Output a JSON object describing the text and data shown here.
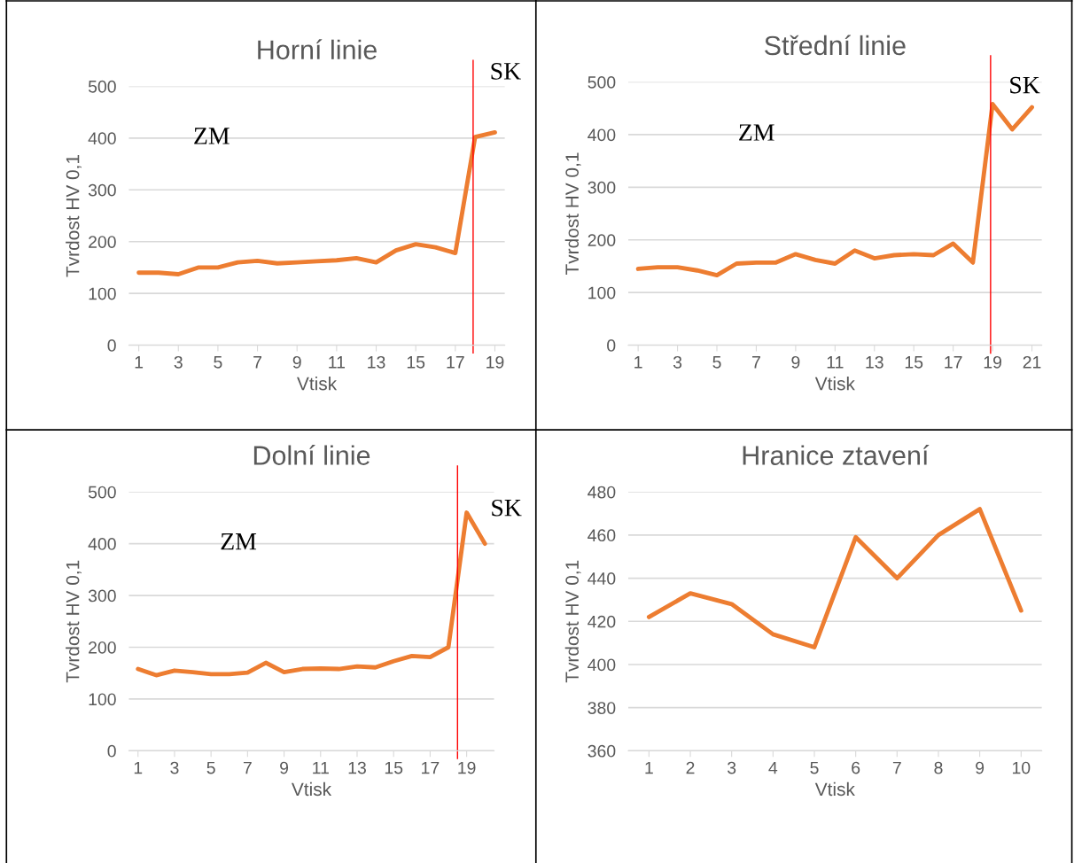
{
  "chart_data": [
    {
      "type": "line",
      "title": "Horní linie",
      "xlabel": "Vtisk",
      "ylabel": "Tvrdost HV 0,1",
      "x": [
        1,
        2,
        3,
        4,
        5,
        6,
        7,
        8,
        9,
        10,
        11,
        12,
        13,
        14,
        15,
        16,
        17,
        18,
        19
      ],
      "series": [
        {
          "color": "#ed7d31",
          "values": [
            140,
            140,
            137,
            150,
            150,
            160,
            163,
            158,
            160,
            162,
            164,
            168,
            160,
            183,
            195,
            189,
            178,
            402,
            411
          ]
        }
      ],
      "xlim": [
        0.5,
        19.5
      ],
      "xticks": [
        1,
        3,
        5,
        7,
        9,
        11,
        13,
        15,
        17,
        19
      ],
      "ylim": [
        0,
        500
      ],
      "yticks": [
        0,
        100,
        200,
        300,
        400,
        500
      ],
      "grid": "y",
      "ref_lines": [
        {
          "axis": "x",
          "value": 17.9,
          "color": "#ff0000"
        }
      ],
      "annotations": [
        "ZM",
        "SK"
      ]
    },
    {
      "type": "line",
      "title": "Střední linie",
      "xlabel": "Vtisk",
      "ylabel": "Tvrdost HV 0,1",
      "x": [
        1,
        2,
        3,
        4,
        5,
        6,
        7,
        8,
        9,
        10,
        11,
        12,
        13,
        14,
        15,
        16,
        17,
        18,
        19,
        20,
        21
      ],
      "series": [
        {
          "color": "#ed7d31",
          "values": [
            145,
            148,
            148,
            142,
            133,
            155,
            157,
            157,
            173,
            162,
            155,
            180,
            165,
            171,
            173,
            171,
            193,
            157,
            458,
            410,
            452
          ]
        }
      ],
      "xlim": [
        0.5,
        21.5
      ],
      "xticks": [
        1,
        3,
        5,
        7,
        9,
        11,
        13,
        15,
        17,
        19,
        21
      ],
      "ylim": [
        0,
        500
      ],
      "yticks": [
        0,
        100,
        200,
        300,
        400,
        500
      ],
      "grid": "y",
      "ref_lines": [
        {
          "axis": "x",
          "value": 18.9,
          "color": "#ff0000"
        }
      ],
      "annotations": [
        "ZM",
        "SK"
      ]
    },
    {
      "type": "line",
      "title": "Dolní linie",
      "xlabel": "Vtisk",
      "ylabel": "Tvrdost HV 0,1",
      "x": [
        1,
        2,
        3,
        4,
        5,
        6,
        7,
        8,
        9,
        10,
        11,
        12,
        13,
        14,
        15,
        16,
        17,
        18,
        19,
        20
      ],
      "series": [
        {
          "color": "#ed7d31",
          "values": [
            158,
            146,
            155,
            152,
            148,
            148,
            151,
            170,
            152,
            158,
            159,
            158,
            163,
            161,
            173,
            183,
            181,
            200,
            460,
            400
          ]
        }
      ],
      "xlim": [
        0.5,
        20.5
      ],
      "xticks": [
        1,
        3,
        5,
        7,
        9,
        11,
        13,
        15,
        17,
        19
      ],
      "ylim": [
        0,
        500
      ],
      "yticks": [
        0,
        100,
        200,
        300,
        400,
        500
      ],
      "grid": "y",
      "ref_lines": [
        {
          "axis": "x",
          "value": 18.5,
          "color": "#ff0000"
        }
      ],
      "annotations": [
        "ZM",
        "SK"
      ]
    },
    {
      "type": "line",
      "title": "Hranice ztavení",
      "xlabel": "Vtisk",
      "ylabel": "Tvrdost HV 0,1",
      "x": [
        1,
        2,
        3,
        4,
        5,
        6,
        7,
        8,
        9,
        10
      ],
      "series": [
        {
          "color": "#ed7d31",
          "values": [
            422,
            433,
            428,
            414,
            408,
            459,
            440,
            460,
            472,
            425
          ]
        }
      ],
      "xlim": [
        0.5,
        10.5
      ],
      "xticks": [
        1,
        2,
        3,
        4,
        5,
        6,
        7,
        8,
        9,
        10
      ],
      "ylim": [
        360,
        480
      ],
      "yticks": [
        360,
        380,
        400,
        420,
        440,
        460,
        480
      ],
      "grid": "y"
    }
  ]
}
